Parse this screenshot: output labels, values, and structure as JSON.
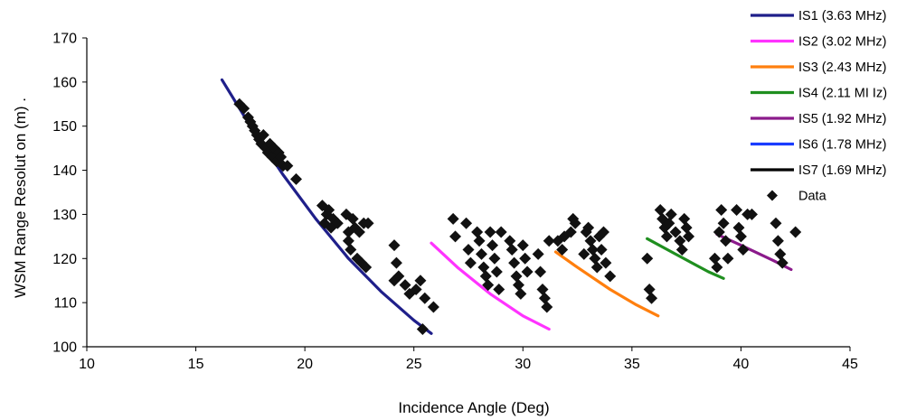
{
  "chart_data": {
    "type": "scatter",
    "xlabel": "Incidence Angle (Deg)",
    "ylabel": "WSM Range Resolut on (m)  .",
    "xlim": [
      10,
      45
    ],
    "ylim": [
      100,
      170
    ],
    "xticks": [
      "10",
      "15",
      "20",
      "25",
      "30",
      "35",
      "40",
      "45"
    ],
    "yticks": [
      "100",
      "110",
      "120",
      "130",
      "140",
      "150",
      "160",
      "170"
    ],
    "grid": false,
    "legend_position": "top-right",
    "series": [
      {
        "name": "IS1 (3.63 MHz)",
        "kind": "line",
        "color": "#1f1f8a",
        "x": [
          16.2,
          17.5,
          19,
          20.5,
          22,
          23.5,
          25,
          25.8
        ],
        "y": [
          160.5,
          150,
          139,
          129,
          120,
          112.5,
          106,
          103
        ]
      },
      {
        "name": "IS2 (3.02 MHz)",
        "kind": "line",
        "color": "#ff33ff",
        "x": [
          25.8,
          27,
          28.5,
          30,
          31.2
        ],
        "y": [
          123.5,
          118,
          112,
          107,
          104
        ]
      },
      {
        "name": "IS3 (2.43 MHz)",
        "kind": "line",
        "color": "#ff7f0e",
        "x": [
          31.5,
          32.5,
          34,
          35.2,
          36.2
        ],
        "y": [
          121.5,
          118,
          113,
          109.5,
          107
        ]
      },
      {
        "name": "IS4 (2.11 MI Iz)",
        "kind": "line",
        "color": "#1f8f1f",
        "x": [
          35.7,
          37,
          38.5,
          39.2
        ],
        "y": [
          124.5,
          121,
          117,
          115.5
        ]
      },
      {
        "name": "IS5 (1.92 MHz)",
        "kind": "line",
        "color": "#8b1a8b",
        "x": [
          38.9,
          40,
          41.5,
          42.3
        ],
        "y": [
          125.5,
          123,
          119.5,
          117.5
        ]
      },
      {
        "name": "IS6 (1.78 MHz)",
        "kind": "line",
        "color": "#1a3cff",
        "x": [],
        "y": []
      },
      {
        "name": "IS7 (1.69 MHz)",
        "kind": "line",
        "color": "#000000",
        "x": [],
        "y": []
      },
      {
        "name": "Data",
        "kind": "points",
        "color": "#111111",
        "points": [
          [
            17.0,
            155
          ],
          [
            17.2,
            154
          ],
          [
            17.4,
            152
          ],
          [
            17.5,
            151
          ],
          [
            17.6,
            150
          ],
          [
            17.7,
            149
          ],
          [
            17.8,
            148
          ],
          [
            17.9,
            147
          ],
          [
            18.0,
            146
          ],
          [
            18.1,
            148
          ],
          [
            18.2,
            145
          ],
          [
            18.3,
            144
          ],
          [
            18.4,
            146
          ],
          [
            18.5,
            143
          ],
          [
            18.6,
            145
          ],
          [
            18.7,
            142
          ],
          [
            18.8,
            144
          ],
          [
            18.9,
            143
          ],
          [
            19.0,
            141
          ],
          [
            19.2,
            141
          ],
          [
            19.6,
            138
          ],
          [
            20.8,
            132
          ],
          [
            20.9,
            128
          ],
          [
            21.0,
            130
          ],
          [
            21.1,
            131
          ],
          [
            21.2,
            127
          ],
          [
            21.3,
            129
          ],
          [
            21.5,
            128
          ],
          [
            21.9,
            130
          ],
          [
            22.0,
            126
          ],
          [
            22.0,
            124
          ],
          [
            22.1,
            122
          ],
          [
            22.2,
            129
          ],
          [
            22.3,
            127
          ],
          [
            22.4,
            120
          ],
          [
            22.5,
            126
          ],
          [
            22.6,
            119
          ],
          [
            22.7,
            128
          ],
          [
            22.8,
            118
          ],
          [
            22.9,
            128
          ],
          [
            24.1,
            123
          ],
          [
            24.1,
            115
          ],
          [
            24.2,
            119
          ],
          [
            24.3,
            116
          ],
          [
            24.6,
            114
          ],
          [
            24.8,
            112
          ],
          [
            25.1,
            113
          ],
          [
            25.3,
            115
          ],
          [
            25.4,
            104
          ],
          [
            25.5,
            111
          ],
          [
            25.9,
            109
          ],
          [
            26.8,
            129
          ],
          [
            26.9,
            125
          ],
          [
            27.4,
            128
          ],
          [
            27.5,
            122
          ],
          [
            27.6,
            119
          ],
          [
            27.9,
            126
          ],
          [
            28.0,
            124
          ],
          [
            28.1,
            121
          ],
          [
            28.2,
            118
          ],
          [
            28.3,
            116
          ],
          [
            28.4,
            114
          ],
          [
            28.5,
            126
          ],
          [
            28.6,
            123
          ],
          [
            28.7,
            120
          ],
          [
            28.8,
            117
          ],
          [
            28.9,
            113
          ],
          [
            29.0,
            126
          ],
          [
            29.4,
            124
          ],
          [
            29.5,
            122
          ],
          [
            29.6,
            119
          ],
          [
            29.7,
            116
          ],
          [
            29.8,
            114
          ],
          [
            29.9,
            112
          ],
          [
            30.0,
            123
          ],
          [
            30.1,
            120
          ],
          [
            30.2,
            117
          ],
          [
            30.7,
            121
          ],
          [
            30.8,
            117
          ],
          [
            30.9,
            113
          ],
          [
            31.0,
            111
          ],
          [
            31.1,
            109
          ],
          [
            31.2,
            124
          ],
          [
            31.6,
            124
          ],
          [
            31.8,
            122
          ],
          [
            31.9,
            125
          ],
          [
            32.2,
            126
          ],
          [
            32.3,
            129
          ],
          [
            32.4,
            128
          ],
          [
            32.8,
            121
          ],
          [
            32.9,
            126
          ],
          [
            33.0,
            127
          ],
          [
            33.1,
            124
          ],
          [
            33.2,
            122
          ],
          [
            33.3,
            120
          ],
          [
            33.4,
            118
          ],
          [
            33.5,
            125
          ],
          [
            33.6,
            122
          ],
          [
            33.7,
            126
          ],
          [
            33.8,
            119
          ],
          [
            34.0,
            116
          ],
          [
            35.7,
            120
          ],
          [
            35.8,
            113
          ],
          [
            35.9,
            111
          ],
          [
            36.3,
            131
          ],
          [
            36.4,
            129
          ],
          [
            36.5,
            127
          ],
          [
            36.6,
            125
          ],
          [
            36.7,
            128
          ],
          [
            36.8,
            130
          ],
          [
            37.0,
            126
          ],
          [
            37.2,
            124
          ],
          [
            37.3,
            122
          ],
          [
            37.4,
            129
          ],
          [
            37.5,
            127
          ],
          [
            37.6,
            125
          ],
          [
            38.8,
            120
          ],
          [
            38.9,
            118
          ],
          [
            39.0,
            126
          ],
          [
            39.1,
            131
          ],
          [
            39.2,
            128
          ],
          [
            39.3,
            124
          ],
          [
            39.4,
            120
          ],
          [
            39.8,
            131
          ],
          [
            39.9,
            127
          ],
          [
            40.0,
            125
          ],
          [
            40.1,
            122
          ],
          [
            40.3,
            130
          ],
          [
            40.5,
            130
          ],
          [
            41.6,
            128
          ],
          [
            41.7,
            124
          ],
          [
            41.8,
            121
          ],
          [
            41.9,
            119
          ],
          [
            42.5,
            126
          ]
        ]
      }
    ]
  }
}
